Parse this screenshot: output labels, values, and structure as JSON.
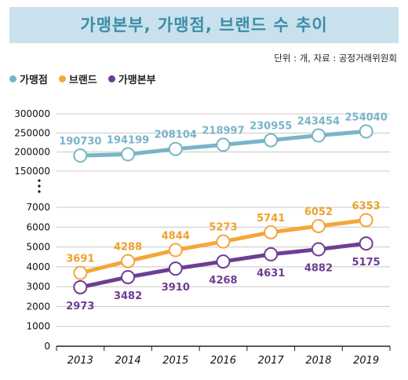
{
  "title": "가맹본부, 가맹점, 브랜드 수 추이",
  "unit_note": "단위 : 개, 자료 : 공정거래위원회",
  "colors": {
    "title_bg": "#c9e1ec",
    "title_text": "#3a8ea6"
  },
  "chart_data": {
    "type": "line",
    "x": [
      "2013",
      "2014",
      "2015",
      "2016",
      "2017",
      "2018",
      "2019"
    ],
    "series": [
      {
        "name": "가맹점",
        "color": "#79b4c8",
        "labelColor": "#79b4c8",
        "values": [
          190730,
          194199,
          208104,
          218997,
          230955,
          243454,
          254040
        ]
      },
      {
        "name": "브랜드",
        "color": "#f3a73a",
        "labelColor": "#f0a12c",
        "values": [
          3691,
          4288,
          4844,
          5273,
          5741,
          6052,
          6353
        ]
      },
      {
        "name": "가맹본부",
        "color": "#6d3e93",
        "labelColor": "#6d3e93",
        "values": [
          2973,
          3482,
          3910,
          4268,
          4631,
          4882,
          5175
        ]
      }
    ],
    "y_upper_ticks": [
      "300000",
      "250000",
      "200000",
      "150000"
    ],
    "y_lower_ticks": [
      "7000",
      "6000",
      "5000",
      "4000",
      "3000",
      "2000",
      "1000",
      "0"
    ],
    "y_upper_range": [
      150000,
      300000
    ],
    "y_lower_range": [
      0,
      7000
    ],
    "axis_break": true,
    "grid": "horizontal"
  }
}
